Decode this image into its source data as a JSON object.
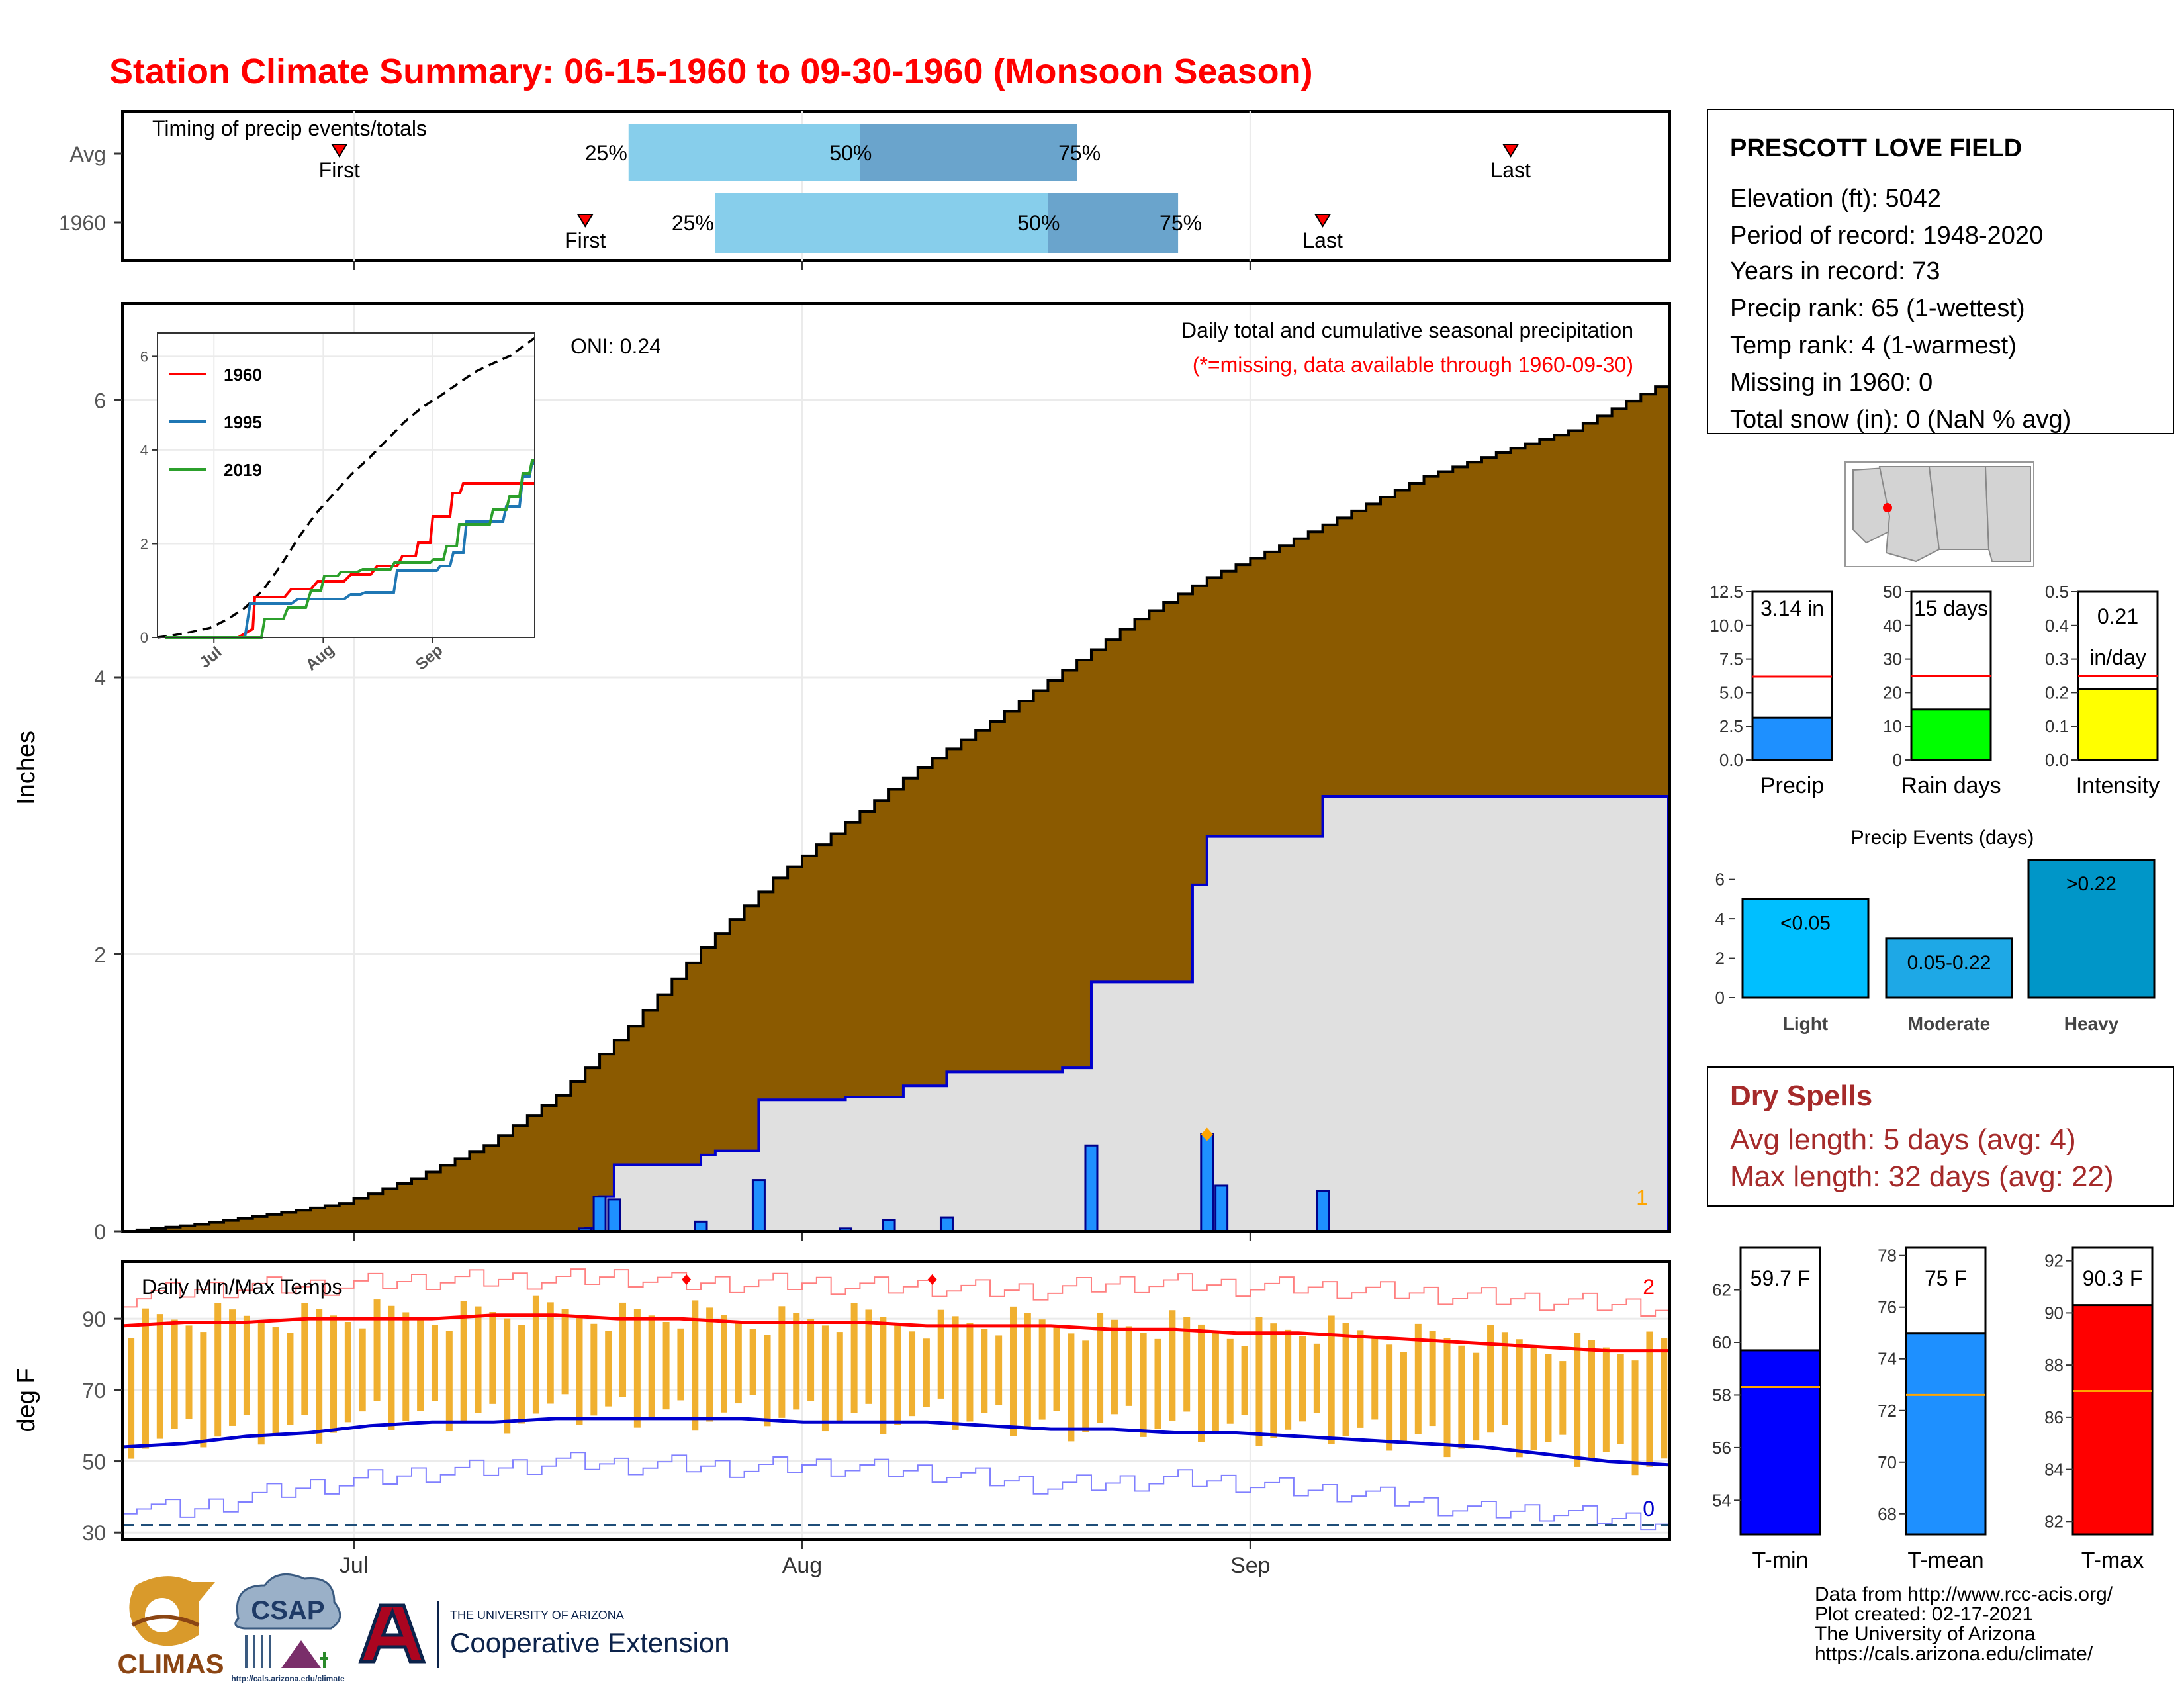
{
  "title": "Station Climate Summary: 06-15-1960 to 09-30-1960 (Monsoon Season)",
  "colors": {
    "title": "#ff0000",
    "q_light": "#87ceeb",
    "q_dark": "#6aa4cc",
    "marker": "#ff0000",
    "brown": "#8b5a00",
    "gray_fill": "#e0e0e0",
    "blue_line": "#0000cd",
    "precip_bar": "#1e90ff",
    "temp_bar": "#f0b030",
    "tmax_line": "#ff0000",
    "tmin_line": "#0000cd",
    "orange": "#ffa500",
    "dry_spell": "#a52a2a",
    "tmin_bar": "#0000ff",
    "tmean_bar": "#1e90ff",
    "tmax_bar": "#ff0000",
    "rain_bar": "#00ff00",
    "intensity_bar": "#ffff00",
    "light_bar": "#00bfff",
    "moderate_bar": "#1ea8e6",
    "heavy_bar": "#0096c8"
  },
  "timing": {
    "title": "Timing of precip events/totals",
    "rows": [
      {
        "label": "Avg",
        "first": "First",
        "last": "Last",
        "p25": "25%",
        "p50": "50%",
        "p75": "75%",
        "first_date": "1960-06-30",
        "last_date": "1960-09-19",
        "q25_date": "1960-07-20",
        "q50_date": "1960-08-05",
        "q75_date": "1960-08-20"
      },
      {
        "label": "1960",
        "first": "First",
        "last": "Last",
        "p25": "25%",
        "p50": "50%",
        "p75": "75%",
        "first_date": "1960-07-17",
        "last_date": "1960-09-06",
        "q25_date": "1960-07-26",
        "q50_date": "1960-08-18",
        "q75_date": "1960-08-27"
      }
    ]
  },
  "xaxis": {
    "labels": [
      "Jul",
      "Aug",
      "Sep"
    ],
    "dates": [
      "1960-07-01",
      "1960-08-01",
      "1960-09-01"
    ],
    "start": "1960-06-15",
    "end": "1960-09-30"
  },
  "chart_data": [
    {
      "type": "area",
      "name": "precip",
      "ylabel": "Inches",
      "ylim": [
        0,
        6.7
      ],
      "yticks": [
        0,
        2,
        4,
        6
      ],
      "oni": "ONI: 0.24",
      "header": "Daily total and cumulative seasonal precipitation",
      "subheader": "(*=missing, data available through 1960-09-30)",
      "corner_label": "1",
      "avg_cumulative": {
        "dates": [
          "1960-06-15",
          "1960-06-20",
          "1960-06-25",
          "1960-06-30",
          "1960-07-05",
          "1960-07-10",
          "1960-07-15",
          "1960-07-20",
          "1960-07-25",
          "1960-07-30",
          "1960-08-04",
          "1960-08-09",
          "1960-08-14",
          "1960-08-19",
          "1960-08-24",
          "1960-08-29",
          "1960-09-03",
          "1960-09-08",
          "1960-09-13",
          "1960-09-18",
          "1960-09-23",
          "1960-09-30"
        ],
        "values": [
          0,
          0.05,
          0.12,
          0.2,
          0.38,
          0.62,
          0.98,
          1.48,
          2.05,
          2.55,
          2.95,
          3.35,
          3.68,
          4.05,
          4.42,
          4.72,
          4.95,
          5.2,
          5.45,
          5.62,
          5.78,
          6.15
        ]
      },
      "cumulative_1960": {
        "dates": [
          "1960-06-15",
          "1960-07-17",
          "1960-07-18",
          "1960-07-19",
          "1960-07-25",
          "1960-07-26",
          "1960-07-29",
          "1960-08-04",
          "1960-08-08",
          "1960-08-11",
          "1960-08-19",
          "1960-08-21",
          "1960-08-28",
          "1960-08-29",
          "1960-09-06",
          "1960-09-29"
        ],
        "values": [
          0,
          0.02,
          0.25,
          0.48,
          0.55,
          0.58,
          0.95,
          0.97,
          1.05,
          1.15,
          1.18,
          1.8,
          2.5,
          2.85,
          3.14,
          3.14
        ]
      },
      "daily_1960": {
        "dates": [
          "1960-07-17",
          "1960-07-18",
          "1960-07-19",
          "1960-07-25",
          "1960-07-29",
          "1960-08-04",
          "1960-08-07",
          "1960-08-11",
          "1960-08-21",
          "1960-08-29",
          "1960-08-30",
          "1960-09-06"
        ],
        "values": [
          0.02,
          0.25,
          0.23,
          0.07,
          0.37,
          0.02,
          0.08,
          0.1,
          0.62,
          0.7,
          0.33,
          0.29
        ]
      },
      "missing_marker_date": "1960-08-29"
    },
    {
      "type": "line",
      "name": "temperature",
      "title": "Daily Min/Max Temps",
      "ylabel": "deg F",
      "ylim": [
        28,
        106
      ],
      "yticks": [
        30,
        50,
        70,
        90
      ],
      "freeze_line": 32,
      "corner_top": "2",
      "corner_bottom": "0",
      "avg_max": [
        88,
        89,
        89,
        90,
        90,
        90,
        91,
        91,
        90,
        90,
        89,
        89,
        89,
        88,
        88,
        88,
        87,
        87,
        86,
        86,
        85,
        84,
        83,
        82,
        81,
        81
      ],
      "avg_min": [
        54,
        55,
        57,
        58,
        60,
        61,
        61,
        62,
        62,
        62,
        62,
        61,
        61,
        61,
        60,
        59,
        59,
        58,
        58,
        57,
        56,
        55,
        54,
        52,
        50,
        49
      ],
      "record_max": [
        96,
        98,
        99,
        99,
        100,
        101,
        101,
        101,
        102,
        100,
        100,
        100,
        99,
        99,
        98,
        98,
        100,
        100,
        99,
        99,
        98,
        97,
        96,
        95,
        94,
        93
      ],
      "record_min": [
        38,
        36,
        40,
        43,
        45,
        47,
        48,
        50,
        49,
        49,
        48,
        49,
        48,
        47,
        45,
        43,
        44,
        45,
        44,
        42,
        41,
        38,
        36,
        36,
        34,
        33
      ],
      "record_markers": [
        {
          "date": "1960-07-24",
          "value": 101
        },
        {
          "date": "1960-08-10",
          "value": 101
        }
      ]
    },
    {
      "type": "bar",
      "name": "precip-gauge",
      "categories": [
        "Precip"
      ],
      "values": [
        3.14
      ],
      "avg": 6.2,
      "ylim": [
        0,
        12.5
      ],
      "yticks": [
        "0.0",
        "2.5",
        "5.0",
        "7.5",
        "10.0",
        "12.5"
      ],
      "ytick_values": [
        0,
        2.5,
        5,
        7.5,
        10,
        12.5
      ],
      "label": "3.14 in"
    },
    {
      "type": "bar",
      "name": "raindays-gauge",
      "categories": [
        "Rain days"
      ],
      "values": [
        15
      ],
      "avg": 25,
      "ylim": [
        0,
        50
      ],
      "yticks": [
        "0",
        "10",
        "20",
        "30",
        "40",
        "50"
      ],
      "ytick_values": [
        0,
        10,
        20,
        30,
        40,
        50
      ],
      "label": "15 days"
    },
    {
      "type": "bar",
      "name": "intensity-gauge",
      "categories": [
        "Intensity"
      ],
      "values": [
        0.21
      ],
      "avg": 0.25,
      "ylim": [
        0,
        0.5
      ],
      "yticks": [
        "0.0",
        "0.1",
        "0.2",
        "0.3",
        "0.4",
        "0.5"
      ],
      "ytick_values": [
        0,
        0.1,
        0.2,
        0.3,
        0.4,
        0.5
      ],
      "label": "0.21",
      "label2": "in/day"
    },
    {
      "type": "bar",
      "name": "precip-events",
      "title": "Precip Events (days)",
      "categories": [
        "Light",
        "Moderate",
        "Heavy"
      ],
      "values": [
        5,
        3,
        7
      ],
      "labels": [
        "<0.05",
        "0.05-0.22",
        ">0.22"
      ],
      "ylim": [
        0,
        7.3
      ],
      "yticks": [
        "0",
        "2",
        "4",
        "6"
      ],
      "ytick_values": [
        0,
        2,
        4,
        6
      ]
    },
    {
      "type": "bar",
      "name": "tmin-gauge",
      "categories": [
        "T-min"
      ],
      "values": [
        59.7
      ],
      "avg": 58.3,
      "ylim": [
        52.7,
        63.6
      ],
      "yticks": [
        "54",
        "56",
        "58",
        "60",
        "62"
      ],
      "ytick_values": [
        54,
        56,
        58,
        60,
        62
      ],
      "label": "59.7 F"
    },
    {
      "type": "bar",
      "name": "tmean-gauge",
      "categories": [
        "T-mean"
      ],
      "values": [
        75
      ],
      "avg": 72.6,
      "ylim": [
        67.2,
        78.3
      ],
      "yticks": [
        "68",
        "70",
        "72",
        "74",
        "76",
        "78"
      ],
      "ytick_values": [
        68,
        70,
        72,
        74,
        76,
        78
      ],
      "label": "75 F"
    },
    {
      "type": "bar",
      "name": "tmax-gauge",
      "categories": [
        "T-max"
      ],
      "values": [
        90.3
      ],
      "avg": 87,
      "ylim": [
        81.5,
        92.5
      ],
      "yticks": [
        "82",
        "84",
        "86",
        "88",
        "90",
        "92"
      ],
      "ytick_values": [
        82,
        84,
        86,
        88,
        90,
        92
      ],
      "label": "90.3 F"
    }
  ],
  "station": {
    "name": "PRESCOTT LOVE FIELD",
    "lines": [
      "Elevation (ft): 5042",
      "Period of record: 1948-2020",
      "Years in record: 73",
      "Precip rank: 65 (1-wettest)",
      "Temp rank: 4 (1-warmest)",
      "Missing in 1960: 0",
      "Total snow (in): 0 (NaN % avg)"
    ]
  },
  "dry_spells": {
    "title": "Dry Spells",
    "avg": "Avg length: 5 days (avg: 4)",
    "max": "Max length: 32 days (avg: 22)"
  },
  "footer": {
    "lines": [
      "Data from http://www.rcc-acis.org/",
      "Plot created: 02-17-2021",
      "The University of Arizona",
      "https://cals.arizona.edu/climate/"
    ]
  },
  "logos": {
    "climas": "CLIMAS",
    "csap": "CSAP",
    "csap_url": "http://cals.arizona.edu/climate",
    "ua_small": "THE UNIVERSITY OF ARIZONA",
    "coop": "Cooperative Extension"
  }
}
